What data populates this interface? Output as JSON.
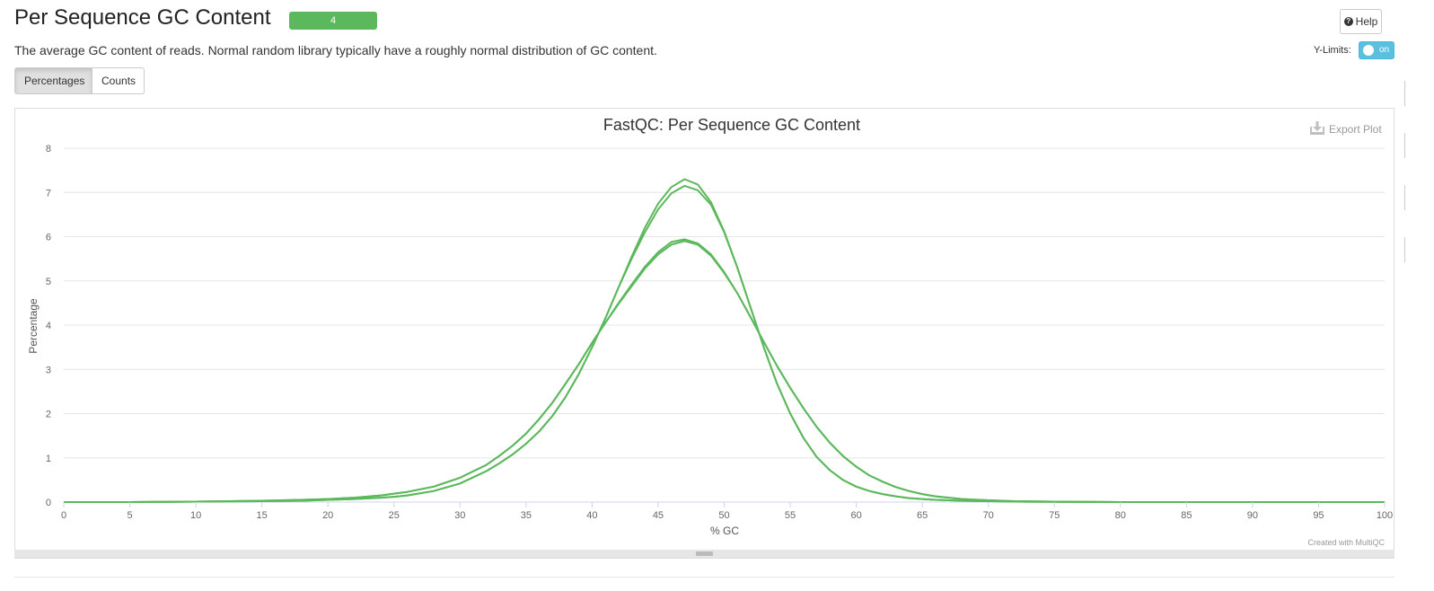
{
  "section": {
    "title": "Per Sequence GC Content",
    "status_count": "4",
    "status_color": "#5cb85c",
    "description": "The average GC content of reads. Normal random library typically have a roughly normal distribution of GC content."
  },
  "toolbar": {
    "help_label": "Help",
    "help_icon": "question-circle-icon",
    "ylimits_label": "Y-Limits:",
    "ylimits_state": "on",
    "view_buttons": [
      "Percentages",
      "Counts"
    ],
    "active_view": "Percentages"
  },
  "plot": {
    "export_label": "Export Plot",
    "export_icon": "download-icon",
    "credit": "Created with MultiQC"
  },
  "chart_data": {
    "type": "line",
    "title": "FastQC: Per Sequence GC Content",
    "xlabel": "% GC",
    "ylabel": "Percentage",
    "xlim": [
      0,
      100
    ],
    "ylim": [
      0,
      8
    ],
    "x_ticks": [
      "0",
      "5",
      "10",
      "15",
      "20",
      "25",
      "30",
      "35",
      "40",
      "45",
      "50",
      "55",
      "60",
      "65",
      "70",
      "75",
      "80",
      "85",
      "90",
      "95",
      "100"
    ],
    "y_ticks": [
      "0",
      "1",
      "2",
      "3",
      "4",
      "5",
      "6",
      "7",
      "8"
    ],
    "grid": true,
    "legend": "none",
    "line_color": "#5cb85c",
    "x": [
      0,
      5,
      10,
      15,
      18,
      20,
      22,
      24,
      25,
      26,
      28,
      30,
      32,
      33,
      34,
      35,
      36,
      37,
      38,
      39,
      40,
      41,
      42,
      43,
      44,
      45,
      46,
      47,
      48,
      49,
      50,
      51,
      52,
      53,
      54,
      55,
      56,
      57,
      58,
      59,
      60,
      61,
      62,
      63,
      64,
      65,
      66,
      68,
      70,
      72,
      75,
      80,
      85,
      90,
      95,
      100
    ],
    "series": [
      {
        "values": [
          0,
          0,
          0.01,
          0.02,
          0.03,
          0.05,
          0.07,
          0.1,
          0.12,
          0.15,
          0.25,
          0.42,
          0.7,
          0.88,
          1.08,
          1.32,
          1.6,
          1.95,
          2.38,
          2.9,
          3.5,
          4.15,
          4.85,
          5.55,
          6.2,
          6.75,
          7.12,
          7.3,
          7.18,
          6.78,
          6.12,
          5.3,
          4.4,
          3.5,
          2.68,
          2.0,
          1.45,
          1.02,
          0.72,
          0.5,
          0.35,
          0.25,
          0.18,
          0.13,
          0.09,
          0.07,
          0.05,
          0.03,
          0.02,
          0.01,
          0.005,
          0,
          0,
          0,
          0,
          0
        ]
      },
      {
        "values": [
          0,
          0,
          0.01,
          0.02,
          0.03,
          0.05,
          0.07,
          0.1,
          0.12,
          0.15,
          0.25,
          0.42,
          0.7,
          0.88,
          1.08,
          1.32,
          1.6,
          1.95,
          2.38,
          2.9,
          3.5,
          4.15,
          4.85,
          5.5,
          6.1,
          6.62,
          6.98,
          7.15,
          7.05,
          6.72,
          6.1,
          5.3,
          4.4,
          3.5,
          2.68,
          2.0,
          1.45,
          1.02,
          0.72,
          0.5,
          0.35,
          0.25,
          0.18,
          0.13,
          0.09,
          0.07,
          0.05,
          0.03,
          0.02,
          0.01,
          0.005,
          0,
          0,
          0,
          0,
          0
        ]
      },
      {
        "values": [
          0,
          0,
          0.01,
          0.03,
          0.05,
          0.07,
          0.1,
          0.15,
          0.19,
          0.23,
          0.35,
          0.55,
          0.84,
          1.05,
          1.28,
          1.55,
          1.88,
          2.25,
          2.68,
          3.12,
          3.6,
          4.05,
          4.5,
          4.92,
          5.32,
          5.65,
          5.88,
          5.94,
          5.85,
          5.6,
          5.2,
          4.72,
          4.18,
          3.62,
          3.08,
          2.58,
          2.12,
          1.7,
          1.34,
          1.04,
          0.8,
          0.6,
          0.46,
          0.34,
          0.25,
          0.18,
          0.13,
          0.07,
          0.04,
          0.02,
          0.01,
          0,
          0,
          0,
          0,
          0
        ]
      },
      {
        "values": [
          0,
          0,
          0.01,
          0.03,
          0.05,
          0.07,
          0.1,
          0.15,
          0.19,
          0.23,
          0.35,
          0.55,
          0.84,
          1.05,
          1.28,
          1.55,
          1.88,
          2.25,
          2.68,
          3.12,
          3.6,
          4.05,
          4.48,
          4.88,
          5.28,
          5.6,
          5.82,
          5.9,
          5.82,
          5.57,
          5.18,
          4.72,
          4.18,
          3.62,
          3.08,
          2.58,
          2.12,
          1.7,
          1.34,
          1.04,
          0.8,
          0.6,
          0.46,
          0.34,
          0.25,
          0.18,
          0.13,
          0.07,
          0.04,
          0.02,
          0.01,
          0,
          0,
          0,
          0,
          0
        ]
      }
    ]
  }
}
